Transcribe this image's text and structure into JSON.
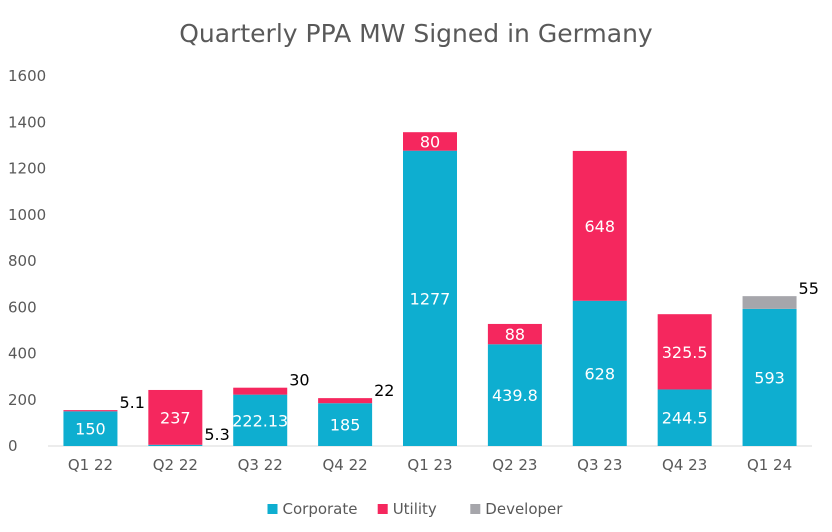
{
  "chart_data": {
    "type": "bar",
    "stacked": true,
    "title": "Quarterly PPA MW Signed in Germany",
    "xlabel": "",
    "ylabel": "",
    "ylim": [
      0,
      1600
    ],
    "yticks": [
      "0",
      "200",
      "400",
      "600",
      "800",
      "1000",
      "1200",
      "1400",
      "1600"
    ],
    "categories": [
      "Q1 22",
      "Q2 22",
      "Q3 22",
      "Q4 22",
      "Q1 23",
      "Q2 23",
      "Q3 23",
      "Q4 23",
      "Q1 24"
    ],
    "series": [
      {
        "name": "Corporate",
        "color": "#0eaed0",
        "values": [
          150,
          5.3,
          222.13,
          185,
          1277,
          439.8,
          628,
          244.5,
          593
        ],
        "labels": [
          "150",
          "5.3",
          "222.13",
          "185",
          "1277",
          "439.8",
          "628",
          "244.5",
          "593"
        ]
      },
      {
        "name": "Utility",
        "color": "#f5275e",
        "values": [
          5.1,
          237,
          30,
          22,
          80,
          88,
          648,
          325.5,
          0
        ],
        "labels": [
          "5.1",
          "237",
          "30",
          "22",
          "80",
          "88",
          "648",
          "325.5",
          ""
        ]
      },
      {
        "name": "Developer",
        "color": "#a6a6ab",
        "values": [
          0,
          0,
          0,
          0,
          0,
          0,
          0,
          0,
          55
        ],
        "labels": [
          "",
          "",
          "",
          "",
          "",
          "",
          "",
          "",
          "55"
        ]
      }
    ],
    "legend": "bottom",
    "grid": false
  }
}
